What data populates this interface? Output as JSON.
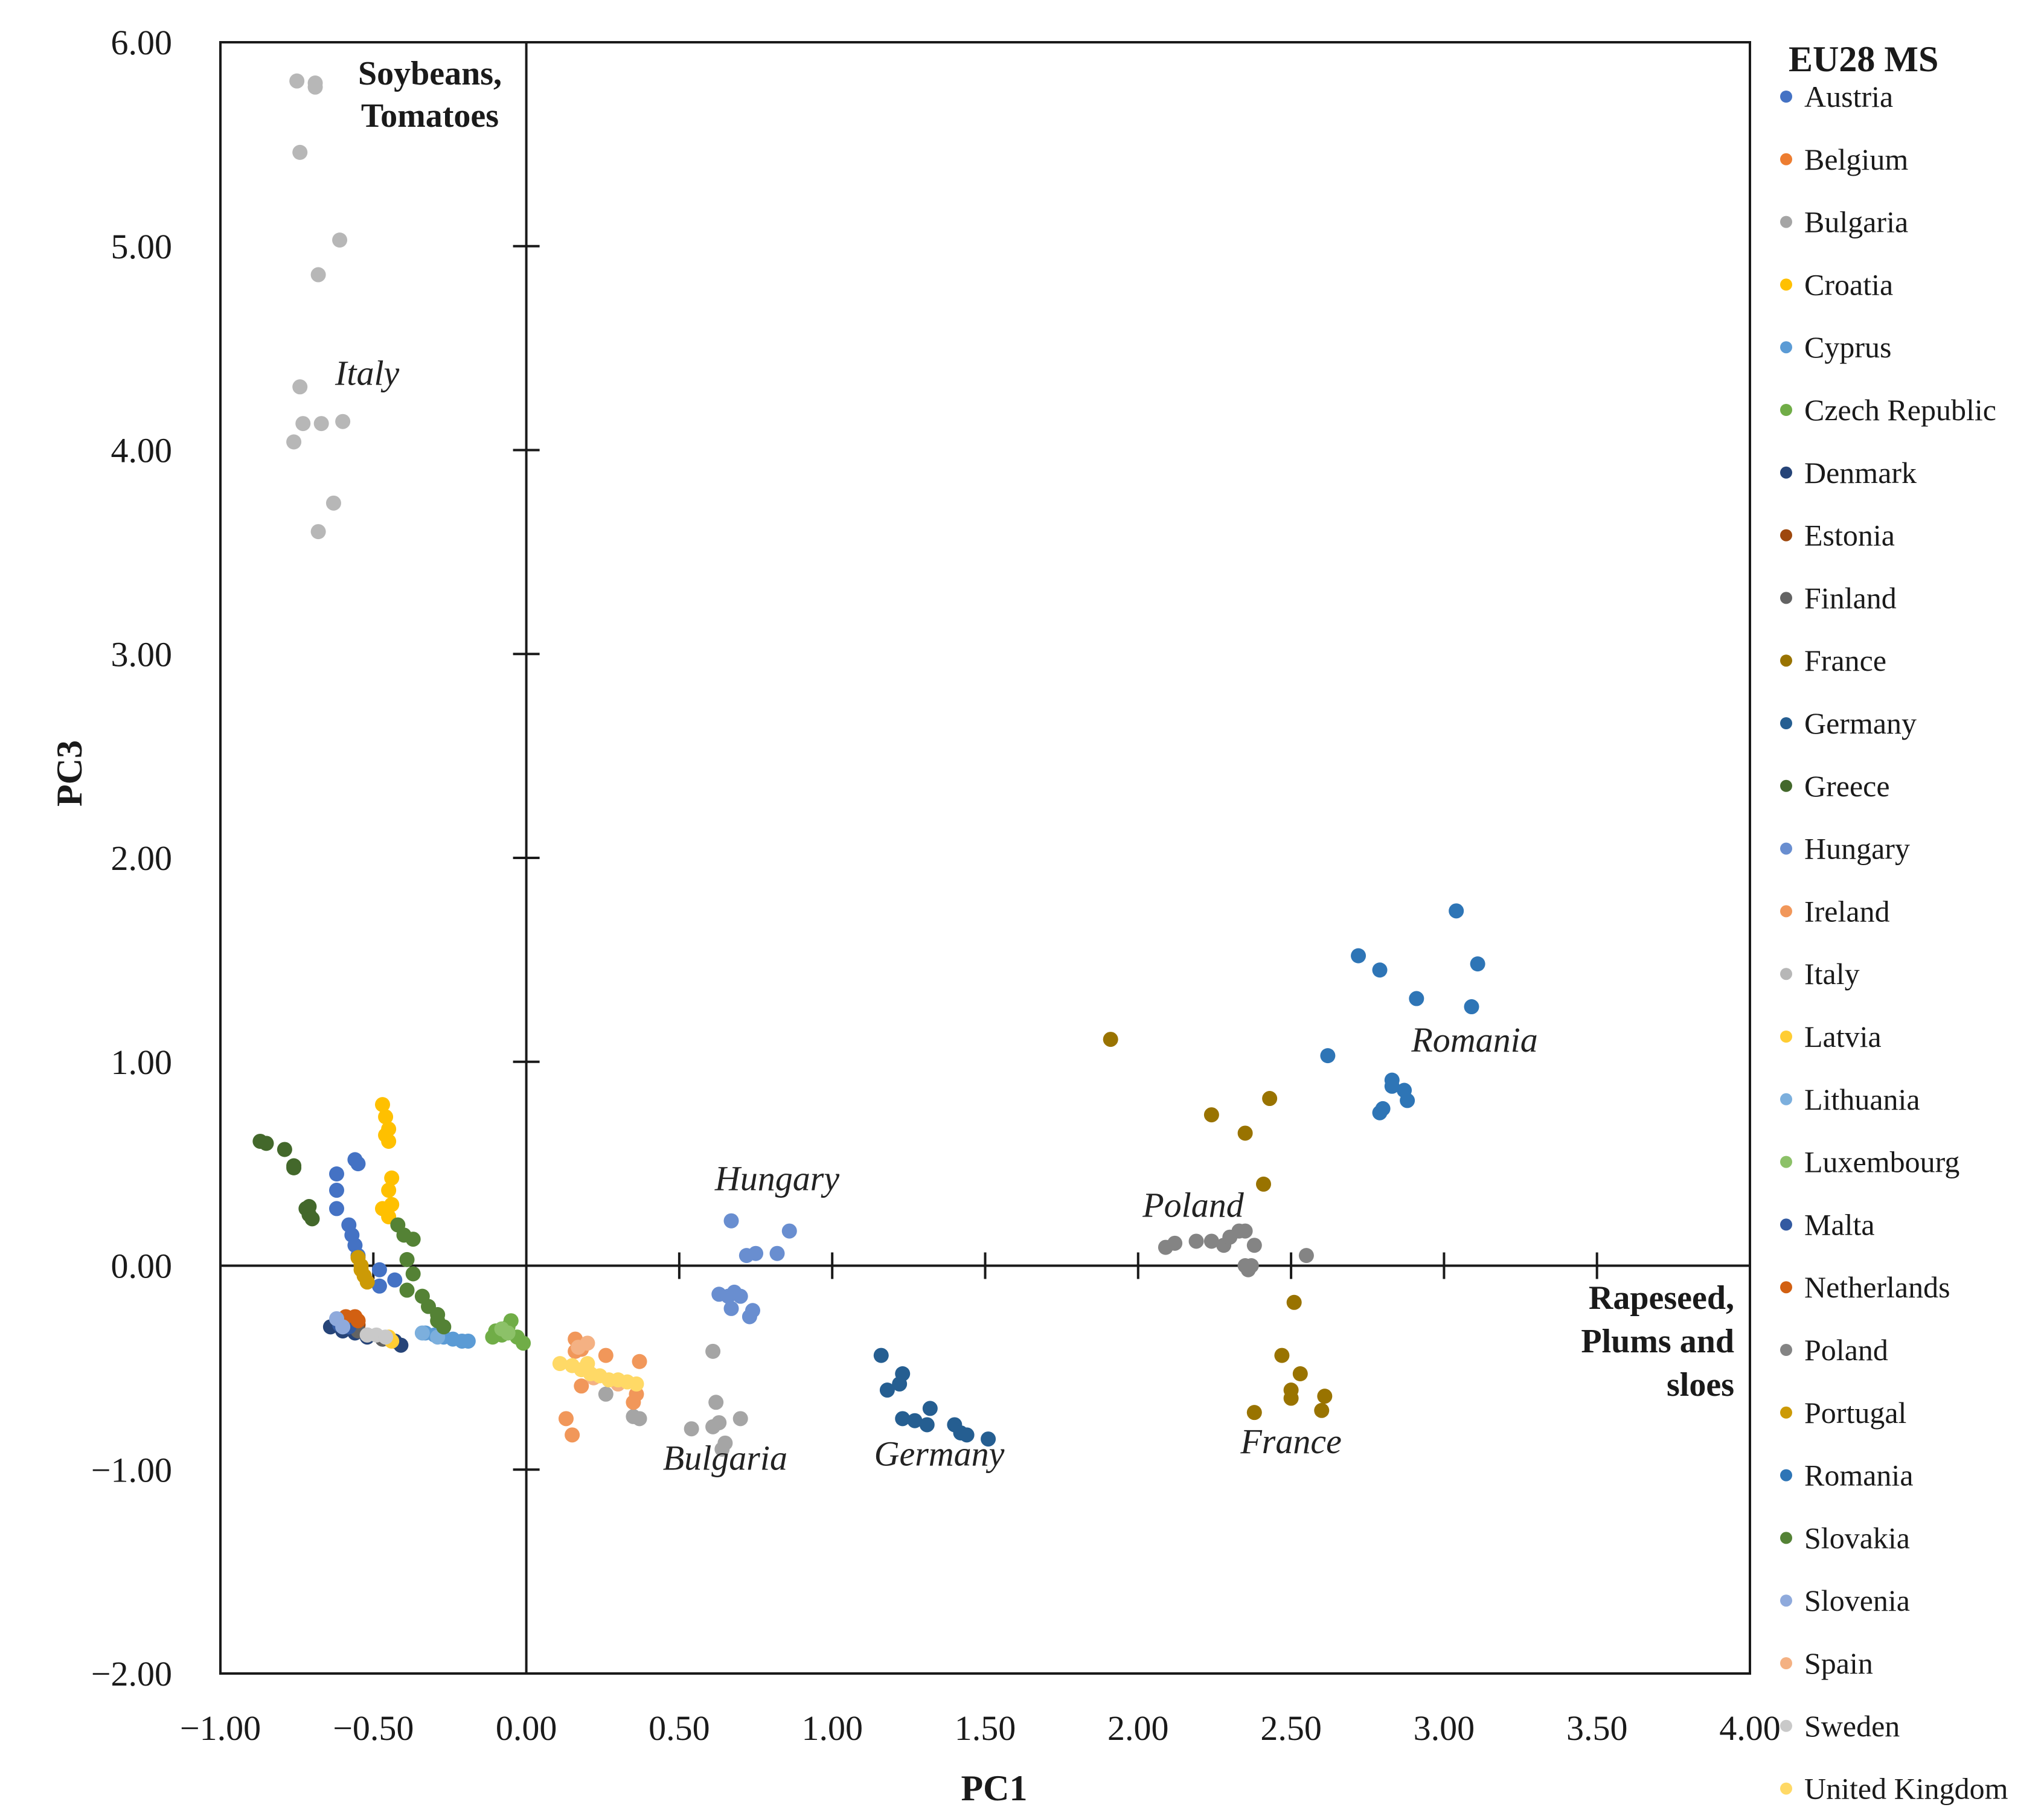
{
  "chart_data": {
    "type": "scatter",
    "title": "",
    "xlabel": "PC1",
    "ylabel": "PC3",
    "xlim": [
      -1.0,
      4.0
    ],
    "ylim": [
      -2.0,
      6.0
    ],
    "xticks": [
      "−1.00",
      "−0.50",
      "0.00",
      "0.50",
      "1.00",
      "1.50",
      "2.00",
      "2.50",
      "3.00",
      "3.50",
      "4.00"
    ],
    "yticks": [
      "−2.00",
      "−1.00",
      "0.00",
      "1.00",
      "2.00",
      "3.00",
      "4.00",
      "5.00",
      "6.00"
    ],
    "legend_title": "EU28 MS",
    "legend_position": "right",
    "quadrant_labels": {
      "top_left": [
        "Soybeans,",
        "Tomatoes"
      ],
      "bottom_right": [
        "Rapeseed,",
        "Plums and",
        "sloes"
      ]
    },
    "annotations": [
      {
        "text": "Italy",
        "x": -0.52,
        "y": 4.32
      },
      {
        "text": "Hungary",
        "x": 0.82,
        "y": 0.37
      },
      {
        "text": "Poland",
        "x": 2.18,
        "y": 0.24
      },
      {
        "text": "Romania",
        "x": 3.1,
        "y": 1.05
      },
      {
        "text": "Bulgaria",
        "x": 0.65,
        "y": -1.0
      },
      {
        "text": "Germany",
        "x": 1.35,
        "y": -0.98
      },
      {
        "text": "France",
        "x": 2.5,
        "y": -0.92
      }
    ],
    "series": [
      {
        "name": "Austria",
        "color": "#4472C4",
        "points": [
          [
            -0.62,
            0.45
          ],
          [
            -0.56,
            0.52
          ],
          [
            -0.55,
            0.5
          ],
          [
            -0.62,
            0.37
          ],
          [
            -0.62,
            0.28
          ],
          [
            -0.58,
            0.2
          ],
          [
            -0.57,
            0.15
          ],
          [
            -0.56,
            0.1
          ],
          [
            -0.55,
            0.05
          ],
          [
            -0.48,
            -0.02
          ],
          [
            -0.43,
            -0.07
          ],
          [
            -0.48,
            -0.1
          ]
        ]
      },
      {
        "name": "Belgium",
        "color": "#ED7D31",
        "points": [
          [
            -0.57,
            -0.26
          ],
          [
            -0.55,
            -0.27
          ]
        ]
      },
      {
        "name": "Bulgaria",
        "color": "#A5A5A5",
        "points": [
          [
            0.61,
            -0.42
          ],
          [
            0.62,
            -0.67
          ],
          [
            0.7,
            -0.75
          ],
          [
            0.54,
            -0.8
          ],
          [
            0.61,
            -0.79
          ],
          [
            0.63,
            -0.77
          ],
          [
            0.65,
            -0.87
          ],
          [
            0.64,
            -0.9
          ],
          [
            0.26,
            -0.63
          ],
          [
            0.35,
            -0.74
          ],
          [
            0.37,
            -0.75
          ]
        ]
      },
      {
        "name": "Croatia",
        "color": "#FFC000",
        "points": [
          [
            -0.47,
            0.79
          ],
          [
            -0.46,
            0.73
          ],
          [
            -0.45,
            0.67
          ],
          [
            -0.46,
            0.64
          ],
          [
            -0.45,
            0.61
          ],
          [
            -0.44,
            0.43
          ],
          [
            -0.45,
            0.37
          ],
          [
            -0.44,
            0.3
          ],
          [
            -0.47,
            0.28
          ],
          [
            -0.45,
            0.24
          ]
        ]
      },
      {
        "name": "Cyprus",
        "color": "#5B9BD5",
        "points": [
          [
            -0.33,
            -0.33
          ],
          [
            -0.3,
            -0.34
          ],
          [
            -0.27,
            -0.35
          ],
          [
            -0.24,
            -0.36
          ],
          [
            -0.21,
            -0.37
          ],
          [
            -0.19,
            -0.37
          ]
        ]
      },
      {
        "name": "Czech Republic",
        "color": "#70AD47",
        "points": [
          [
            -0.1,
            -0.32
          ],
          [
            -0.08,
            -0.34
          ],
          [
            -0.06,
            -0.3
          ],
          [
            -0.05,
            -0.27
          ],
          [
            -0.03,
            -0.35
          ],
          [
            -0.01,
            -0.38
          ],
          [
            -0.11,
            -0.35
          ]
        ]
      },
      {
        "name": "Denmark",
        "color": "#264478",
        "points": [
          [
            -0.64,
            -0.3
          ],
          [
            -0.6,
            -0.32
          ],
          [
            -0.56,
            -0.33
          ],
          [
            -0.52,
            -0.35
          ],
          [
            -0.47,
            -0.36
          ],
          [
            -0.43,
            -0.37
          ],
          [
            -0.41,
            -0.39
          ]
        ]
      },
      {
        "name": "Estonia",
        "color": "#9E480E",
        "points": [
          [
            -0.56,
            -0.28
          ],
          [
            -0.55,
            -0.29
          ]
        ]
      },
      {
        "name": "Finland",
        "color": "#636363",
        "points": [
          [
            -0.55,
            -0.32
          ],
          [
            -0.52,
            -0.34
          ],
          [
            -0.47,
            -0.36
          ]
        ]
      },
      {
        "name": "France",
        "color": "#997300",
        "points": [
          [
            1.91,
            1.11
          ],
          [
            2.24,
            0.74
          ],
          [
            2.35,
            0.65
          ],
          [
            2.43,
            0.82
          ],
          [
            2.41,
            0.4
          ],
          [
            2.51,
            -0.18
          ],
          [
            2.47,
            -0.44
          ],
          [
            2.53,
            -0.53
          ],
          [
            2.5,
            -0.61
          ],
          [
            2.5,
            -0.65
          ],
          [
            2.38,
            -0.72
          ],
          [
            2.61,
            -0.64
          ],
          [
            2.6,
            -0.71
          ]
        ]
      },
      {
        "name": "Germany",
        "color": "#255E91",
        "points": [
          [
            1.16,
            -0.44
          ],
          [
            1.23,
            -0.53
          ],
          [
            1.22,
            -0.58
          ],
          [
            1.18,
            -0.61
          ],
          [
            1.23,
            -0.75
          ],
          [
            1.27,
            -0.76
          ],
          [
            1.32,
            -0.7
          ],
          [
            1.31,
            -0.78
          ],
          [
            1.4,
            -0.78
          ],
          [
            1.42,
            -0.82
          ],
          [
            1.44,
            -0.83
          ],
          [
            1.51,
            -0.85
          ]
        ]
      },
      {
        "name": "Greece",
        "color": "#43682B",
        "points": [
          [
            -0.87,
            0.61
          ],
          [
            -0.85,
            0.6
          ],
          [
            -0.79,
            0.57
          ],
          [
            -0.76,
            0.49
          ],
          [
            -0.76,
            0.48
          ],
          [
            -0.72,
            0.28
          ],
          [
            -0.71,
            0.29
          ],
          [
            -0.71,
            0.25
          ],
          [
            -0.7,
            0.23
          ]
        ]
      },
      {
        "name": "Hungary",
        "color": "#698ED0",
        "points": [
          [
            0.67,
            0.22
          ],
          [
            0.72,
            0.05
          ],
          [
            0.75,
            0.06
          ],
          [
            0.82,
            0.06
          ],
          [
            0.86,
            0.17
          ],
          [
            0.63,
            -0.14
          ],
          [
            0.66,
            -0.15
          ],
          [
            0.68,
            -0.13
          ],
          [
            0.7,
            -0.15
          ],
          [
            0.67,
            -0.21
          ],
          [
            0.73,
            -0.25
          ],
          [
            0.74,
            -0.22
          ]
        ]
      },
      {
        "name": "Ireland",
        "color": "#F1975A",
        "points": [
          [
            0.16,
            -0.36
          ],
          [
            0.16,
            -0.42
          ],
          [
            0.18,
            -0.41
          ],
          [
            0.26,
            -0.44
          ],
          [
            0.37,
            -0.47
          ],
          [
            0.18,
            -0.59
          ],
          [
            0.13,
            -0.75
          ],
          [
            0.15,
            -0.83
          ],
          [
            0.35,
            -0.67
          ],
          [
            0.36,
            -0.63
          ]
        ]
      },
      {
        "name": "Italy",
        "color": "#B7B7B7",
        "points": [
          [
            -0.75,
            5.81
          ],
          [
            -0.69,
            5.8
          ],
          [
            -0.69,
            5.78
          ],
          [
            -0.74,
            5.46
          ],
          [
            -0.61,
            5.03
          ],
          [
            -0.68,
            4.86
          ],
          [
            -0.74,
            4.31
          ],
          [
            -0.73,
            4.13
          ],
          [
            -0.67,
            4.13
          ],
          [
            -0.6,
            4.14
          ],
          [
            -0.76,
            4.04
          ],
          [
            -0.63,
            3.74
          ],
          [
            -0.68,
            3.6
          ]
        ]
      },
      {
        "name": "Latvia",
        "color": "#FFCD33",
        "points": [
          [
            -0.45,
            -0.35
          ],
          [
            -0.44,
            -0.37
          ]
        ]
      },
      {
        "name": "Lithuania",
        "color": "#7CAFDD",
        "points": [
          [
            -0.34,
            -0.33
          ],
          [
            -0.29,
            -0.35
          ]
        ]
      },
      {
        "name": "Luxembourg",
        "color": "#8CC168",
        "points": [
          [
            -0.08,
            -0.31
          ],
          [
            -0.06,
            -0.33
          ]
        ]
      },
      {
        "name": "Malta",
        "color": "#335AA1",
        "points": [
          [
            -0.61,
            -0.29
          ],
          [
            -0.58,
            -0.3
          ]
        ]
      },
      {
        "name": "Netherlands",
        "color": "#D26012",
        "points": [
          [
            -0.59,
            -0.25
          ],
          [
            -0.56,
            -0.25
          ],
          [
            -0.55,
            -0.27
          ]
        ]
      },
      {
        "name": "Poland",
        "color": "#848484",
        "points": [
          [
            2.09,
            0.09
          ],
          [
            2.12,
            0.11
          ],
          [
            2.19,
            0.12
          ],
          [
            2.24,
            0.12
          ],
          [
            2.28,
            0.1
          ],
          [
            2.3,
            0.14
          ],
          [
            2.33,
            0.17
          ],
          [
            2.35,
            0.17
          ],
          [
            2.38,
            0.1
          ],
          [
            2.35,
            0.0
          ],
          [
            2.37,
            0.0
          ],
          [
            2.36,
            -0.02
          ],
          [
            2.55,
            0.05
          ]
        ]
      },
      {
        "name": "Portugal",
        "color": "#CC9A06",
        "points": [
          [
            -0.55,
            0.04
          ],
          [
            -0.54,
            -0.02
          ],
          [
            -0.53,
            -0.05
          ],
          [
            -0.52,
            -0.08
          ],
          [
            -0.54,
            0.0
          ]
        ]
      },
      {
        "name": "Romania",
        "color": "#2E75B6",
        "points": [
          [
            3.04,
            1.74
          ],
          [
            2.72,
            1.52
          ],
          [
            2.79,
            1.45
          ],
          [
            3.11,
            1.48
          ],
          [
            2.91,
            1.31
          ],
          [
            3.09,
            1.27
          ],
          [
            2.62,
            1.03
          ],
          [
            2.83,
            0.91
          ],
          [
            2.83,
            0.88
          ],
          [
            2.87,
            0.86
          ],
          [
            2.88,
            0.81
          ],
          [
            2.8,
            0.77
          ],
          [
            2.79,
            0.75
          ]
        ]
      },
      {
        "name": "Slovakia",
        "color": "#548235",
        "points": [
          [
            -0.42,
            0.2
          ],
          [
            -0.4,
            0.15
          ],
          [
            -0.37,
            0.13
          ],
          [
            -0.39,
            0.03
          ],
          [
            -0.37,
            -0.04
          ],
          [
            -0.34,
            -0.15
          ],
          [
            -0.32,
            -0.2
          ],
          [
            -0.29,
            -0.24
          ],
          [
            -0.29,
            -0.27
          ],
          [
            -0.27,
            -0.3
          ],
          [
            -0.39,
            -0.12
          ]
        ]
      },
      {
        "name": "Slovenia",
        "color": "#8FAADC",
        "points": [
          [
            -0.62,
            -0.26
          ],
          [
            -0.6,
            -0.3
          ]
        ]
      },
      {
        "name": "Spain",
        "color": "#F4B183",
        "points": [
          [
            0.17,
            -0.4
          ],
          [
            0.2,
            -0.38
          ],
          [
            0.22,
            -0.55
          ],
          [
            0.3,
            -0.58
          ]
        ]
      },
      {
        "name": "Sweden",
        "color": "#C9C9C9",
        "points": [
          [
            -0.52,
            -0.34
          ],
          [
            -0.49,
            -0.34
          ],
          [
            -0.46,
            -0.35
          ]
        ]
      },
      {
        "name": "United Kingdom",
        "color": "#FFD966",
        "points": [
          [
            0.11,
            -0.48
          ],
          [
            0.15,
            -0.49
          ],
          [
            0.18,
            -0.51
          ],
          [
            0.21,
            -0.53
          ],
          [
            0.24,
            -0.54
          ],
          [
            0.27,
            -0.56
          ],
          [
            0.3,
            -0.56
          ],
          [
            0.33,
            -0.57
          ],
          [
            0.36,
            -0.58
          ],
          [
            0.2,
            -0.48
          ]
        ]
      }
    ]
  }
}
